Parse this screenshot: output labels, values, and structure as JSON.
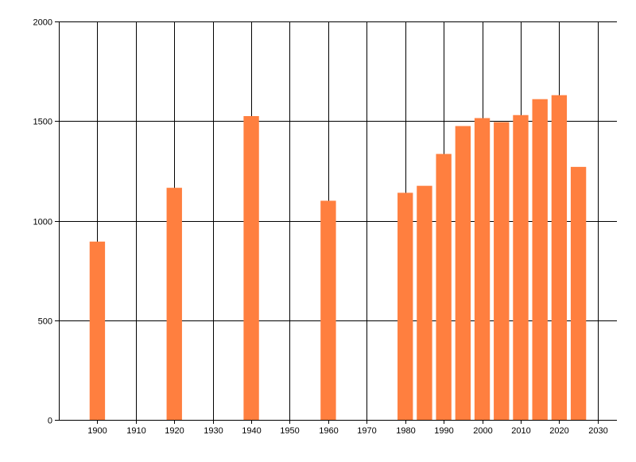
{
  "chart_data": {
    "type": "bar",
    "title": "",
    "xlabel": "",
    "ylabel": "",
    "x": [
      1900,
      1920,
      1940,
      1960,
      1980,
      1985,
      1990,
      1995,
      2000,
      2005,
      2010,
      2015,
      2020,
      2025
    ],
    "values": [
      895,
      1165,
      1525,
      1100,
      1140,
      1175,
      1335,
      1475,
      1515,
      1495,
      1530,
      1610,
      1630,
      1270
    ],
    "xlim": [
      1890,
      2035
    ],
    "ylim": [
      0,
      2000
    ],
    "x_ticks": [
      1900,
      1910,
      1920,
      1930,
      1940,
      1950,
      1960,
      1970,
      1980,
      1990,
      2000,
      2010,
      2020,
      2030
    ],
    "y_ticks": [
      0,
      500,
      1000,
      1500,
      2000
    ],
    "bar_width_years": 4,
    "grid": true,
    "colors": {
      "bar": "#ff7f3f",
      "grid": "#000000",
      "axis": "#000000",
      "background": "#ffffff"
    }
  }
}
